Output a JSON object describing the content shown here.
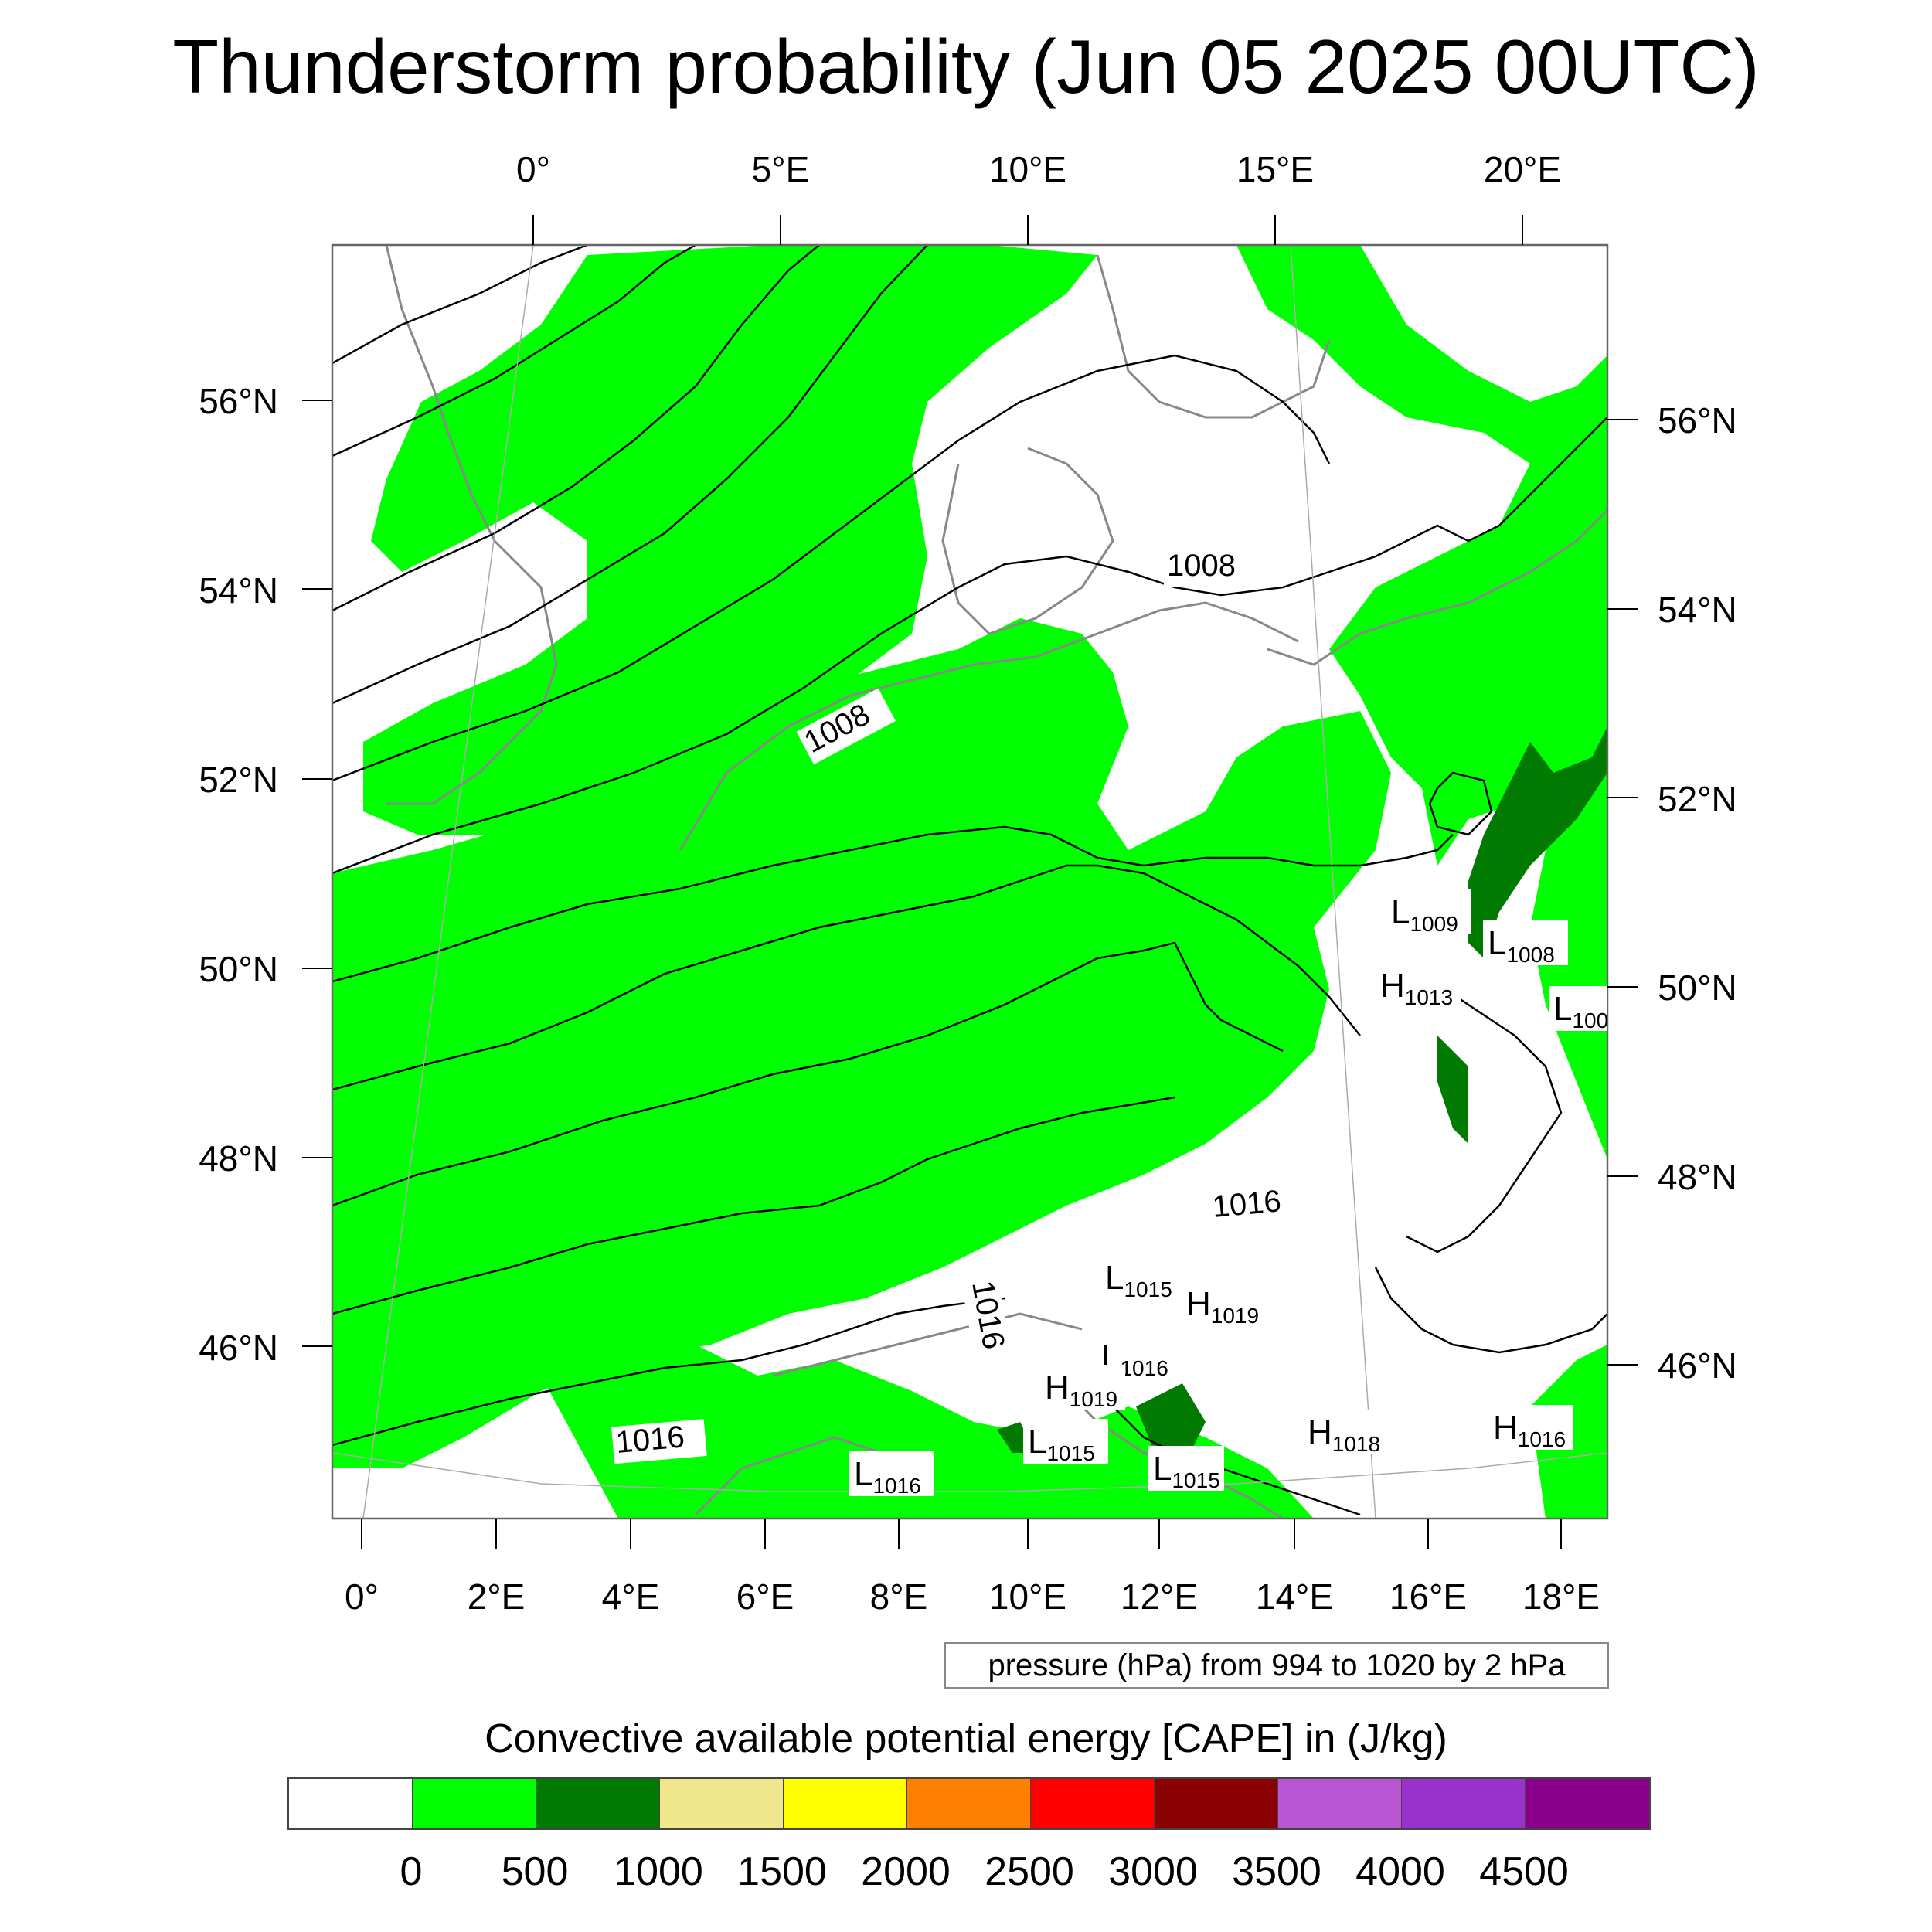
{
  "title": "Thunderstorm probability (Jun 05 2025 00UTC)",
  "top_lon_labels": [
    "0°",
    "5°E",
    "10°E",
    "15°E",
    "20°E"
  ],
  "bottom_lon_labels": [
    "0°",
    "2°E",
    "4°E",
    "6°E",
    "8°E",
    "10°E",
    "12°E",
    "14°E",
    "16°E",
    "18°E"
  ],
  "left_lat_labels": [
    "56°N",
    "54°N",
    "52°N",
    "50°N",
    "48°N",
    "46°N"
  ],
  "right_lat_labels": [
    "56°N",
    "54°N",
    "52°N",
    "50°N",
    "48°N",
    "46°N"
  ],
  "contour_labels": [
    "1008",
    "1008",
    "1016",
    "1016",
    "1016"
  ],
  "pressure_centers": [
    {
      "letter": "L",
      "value": "1009"
    },
    {
      "letter": "L",
      "value": "1008"
    },
    {
      "letter": "H",
      "value": "1013"
    },
    {
      "letter": "L",
      "value": "100"
    },
    {
      "letter": "L",
      "value": "1015"
    },
    {
      "letter": "H",
      "value": "1019"
    },
    {
      "letter": "L",
      "value": "1016"
    },
    {
      "letter": "H",
      "value": "1019"
    },
    {
      "letter": "L",
      "value": "1015"
    },
    {
      "letter": "L",
      "value": "1015"
    },
    {
      "letter": "H",
      "value": "1018"
    },
    {
      "letter": "H",
      "value": "1016"
    },
    {
      "letter": "L",
      "value": "1016"
    }
  ],
  "pressure_note": "pressure (hPa) from 994 to 1020 by 2 hPa",
  "colorbar": {
    "title": "Convective available potential energy [CAPE] in (J/kg)",
    "colors": [
      "#ffffff",
      "#00ff00",
      "#007a00",
      "#f0e68c",
      "#ffff00",
      "#ff8000",
      "#ff0000",
      "#8b0000",
      "#ba55d3",
      "#9932cc",
      "#8b008b"
    ],
    "labels": [
      "0",
      "500",
      "1000",
      "1500",
      "2000",
      "2500",
      "3000",
      "3500",
      "4000",
      "4500"
    ]
  },
  "colors": {
    "cape_low": "#00ff00",
    "cape_mid": "#007a00",
    "coast": "#888888",
    "isobar": "#000000"
  }
}
